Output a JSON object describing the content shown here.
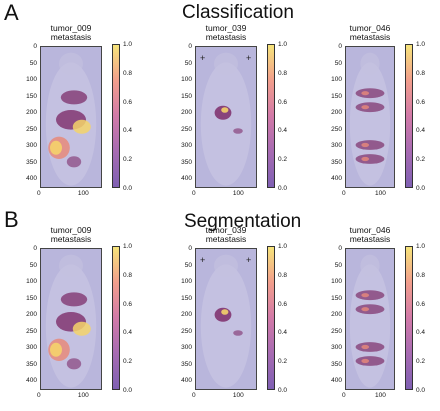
{
  "sections": [
    {
      "letter": "A",
      "title": "Classification",
      "panels": [
        {
          "line1": "tumor_009",
          "line2": "metastasis",
          "hotspots": "009"
        },
        {
          "line1": "tumor_039",
          "line2": "metastasis",
          "hotspots": "039"
        },
        {
          "line1": "tumor_046",
          "line2": "metastasis",
          "hotspots": "046"
        }
      ]
    },
    {
      "letter": "B",
      "title": "Segmentation",
      "panels": [
        {
          "line1": "tumor_009",
          "line2": "metastasis",
          "hotspots": "009"
        },
        {
          "line1": "tumor_039",
          "line2": "metastasis",
          "hotspots": "039"
        },
        {
          "line1": "tumor_046",
          "line2": "metastasis",
          "hotspots": "046"
        }
      ]
    }
  ],
  "y_ticks": [
    "0",
    "50",
    "100",
    "150",
    "200",
    "250",
    "300",
    "350",
    "400"
  ],
  "x_ticks": [
    "0",
    "100"
  ],
  "colorbar_ticks": [
    "1.0",
    "0.8",
    "0.6",
    "0.4",
    "0.2",
    "0.0"
  ],
  "colors": {
    "background": "#b9b6dc",
    "cbar_low": "#7f60b3",
    "cbar_high": "#f6e47a",
    "hot": "#7e2d6a",
    "warm": "#e88a7a",
    "bright": "#f5d36a"
  }
}
